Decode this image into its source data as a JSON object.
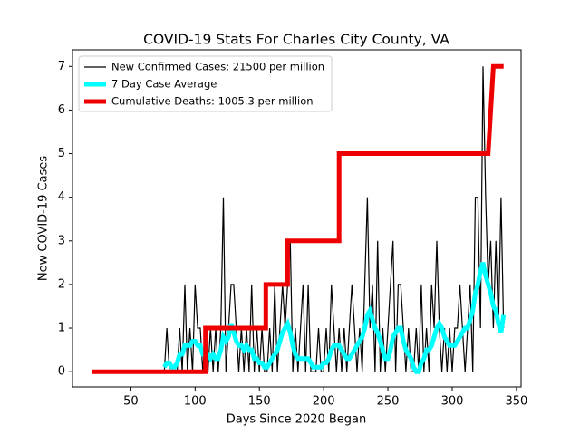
{
  "chart_data": {
    "type": "line",
    "title": "COVID-19 Stats For Charles City County, VA",
    "x_label": "Days Since 2020 Began",
    "y_label": "New COVID-19 Cases",
    "xlim": [
      4.6,
      353.6
    ],
    "ylim": [
      -0.35,
      7.38
    ],
    "xticks": [
      50,
      100,
      150,
      200,
      250,
      300,
      350
    ],
    "yticks": [
      0,
      1,
      2,
      3,
      4,
      5,
      6,
      7
    ],
    "grid": false,
    "legend": "upper left",
    "series": [
      {
        "name": "New Confirmed Cases: 21500 per million",
        "color": "#000000",
        "x": [
          76,
          78,
          80,
          82,
          84,
          86,
          88,
          90,
          92,
          94,
          96,
          98,
          100,
          102,
          104,
          106,
          108,
          110,
          112,
          114,
          116,
          118,
          120,
          122,
          124,
          126,
          128,
          130,
          132,
          134,
          136,
          138,
          140,
          142,
          144,
          146,
          148,
          150,
          152,
          154,
          156,
          158,
          160,
          162,
          164,
          166,
          168,
          170,
          172,
          174,
          176,
          178,
          180,
          182,
          184,
          186,
          188,
          190,
          192,
          194,
          196,
          198,
          200,
          202,
          204,
          206,
          208,
          210,
          212,
          214,
          216,
          218,
          220,
          222,
          224,
          226,
          228,
          230,
          232,
          234,
          236,
          238,
          240,
          242,
          244,
          246,
          248,
          250,
          252,
          254,
          256,
          258,
          260,
          262,
          264,
          266,
          268,
          270,
          272,
          274,
          276,
          278,
          280,
          282,
          284,
          286,
          288,
          290,
          292,
          294,
          296,
          298,
          300,
          302,
          304,
          306,
          308,
          310,
          312,
          314,
          316,
          318,
          320,
          322,
          324,
          326,
          328,
          330,
          332,
          334,
          336,
          338,
          340
        ],
        "values": [
          0,
          1,
          0,
          0,
          0,
          0,
          1,
          0,
          2,
          0,
          1,
          0,
          2,
          1,
          1,
          0,
          1,
          0,
          1,
          0,
          1,
          0,
          1,
          4,
          0,
          1,
          2,
          2,
          1,
          0,
          1,
          0,
          1,
          0,
          2,
          0,
          1,
          0,
          1,
          0,
          0,
          1,
          0,
          2,
          0,
          1,
          2,
          1,
          2,
          3,
          0,
          1,
          0,
          1,
          2,
          0,
          2,
          0,
          0,
          0,
          1,
          0,
          0,
          1,
          0,
          2,
          1,
          0,
          1,
          0,
          1,
          0,
          1,
          2,
          1,
          0,
          1,
          0,
          2,
          4,
          1,
          2,
          0,
          3,
          0,
          1,
          0,
          1,
          2,
          3,
          0,
          2,
          2,
          1,
          0,
          1,
          0,
          0,
          1,
          0,
          2,
          0,
          1,
          0,
          2,
          1,
          3,
          1,
          0,
          1,
          0,
          1,
          0,
          1,
          1,
          2,
          1,
          0,
          1,
          2,
          0,
          4,
          4,
          1,
          7,
          4,
          2,
          3,
          1,
          3,
          1,
          4,
          1
        ]
      },
      {
        "name": "7 Day Case Average",
        "color": "#00ffff",
        "x": [
          76,
          78,
          80,
          82,
          84,
          86,
          88,
          90,
          92,
          94,
          96,
          98,
          100,
          102,
          104,
          106,
          108,
          110,
          112,
          114,
          116,
          118,
          120,
          122,
          124,
          126,
          128,
          130,
          132,
          134,
          136,
          138,
          140,
          142,
          144,
          146,
          148,
          150,
          152,
          154,
          156,
          158,
          160,
          162,
          164,
          166,
          168,
          170,
          172,
          174,
          176,
          178,
          180,
          182,
          184,
          186,
          188,
          190,
          192,
          194,
          196,
          198,
          200,
          202,
          204,
          206,
          208,
          210,
          212,
          214,
          216,
          218,
          220,
          222,
          224,
          226,
          228,
          230,
          232,
          234,
          236,
          238,
          240,
          242,
          244,
          246,
          248,
          250,
          252,
          254,
          256,
          258,
          260,
          262,
          264,
          266,
          268,
          270,
          272,
          274,
          276,
          278,
          280,
          282,
          284,
          286,
          288,
          290,
          292,
          294,
          296,
          298,
          300,
          302,
          304,
          306,
          308,
          310,
          312,
          314,
          316,
          318,
          320,
          322,
          324,
          326,
          328,
          330,
          332,
          334,
          336,
          338,
          340
        ],
        "values": [
          0.1,
          0.2,
          0.2,
          0.1,
          0.1,
          0.2,
          0.4,
          0.4,
          0.6,
          0.6,
          0.6,
          0.7,
          0.7,
          0.6,
          0.6,
          0.4,
          0.4,
          0.4,
          0.3,
          0.4,
          0.3,
          0.3,
          0.5,
          0.8,
          0.7,
          0.8,
          1.1,
          0.9,
          0.7,
          0.6,
          0.6,
          0.5,
          0.6,
          0.5,
          0.5,
          0.3,
          0.3,
          0.2,
          0.2,
          0.1,
          0.1,
          0.2,
          0.3,
          0.4,
          0.5,
          0.7,
          0.9,
          1.0,
          1.1,
          0.9,
          0.6,
          0.4,
          0.3,
          0.3,
          0.3,
          0.3,
          0.3,
          0.2,
          0.1,
          0.1,
          0.1,
          0.1,
          0.2,
          0.2,
          0.3,
          0.5,
          0.6,
          0.6,
          0.6,
          0.5,
          0.4,
          0.3,
          0.3,
          0.4,
          0.5,
          0.6,
          0.7,
          0.8,
          1.0,
          1.3,
          1.4,
          1.2,
          1.0,
          0.9,
          0.7,
          0.5,
          0.3,
          0.3,
          0.5,
          0.8,
          0.9,
          1.0,
          1.0,
          0.7,
          0.5,
          0.4,
          0.3,
          0.1,
          0.0,
          0.0,
          0.2,
          0.3,
          0.5,
          0.5,
          0.6,
          0.8,
          1.0,
          1.1,
          1.0,
          0.8,
          0.7,
          0.6,
          0.6,
          0.6,
          0.7,
          0.8,
          0.9,
          1.0,
          1.0,
          1.2,
          1.4,
          1.8,
          2.0,
          2.3,
          2.5,
          2.2,
          2.0,
          1.8,
          1.5,
          1.4,
          1.1,
          0.9,
          1.3
        ]
      },
      {
        "name": "Cumulative Deaths: 1005.3 per million",
        "color": "#ee0000",
        "x": [
          20,
          108,
          108,
          155,
          155,
          172,
          172,
          212,
          212,
          328,
          332,
          340
        ],
        "values": [
          0,
          0,
          1,
          1,
          2,
          2,
          3,
          3,
          5,
          5,
          7,
          7
        ]
      }
    ]
  }
}
